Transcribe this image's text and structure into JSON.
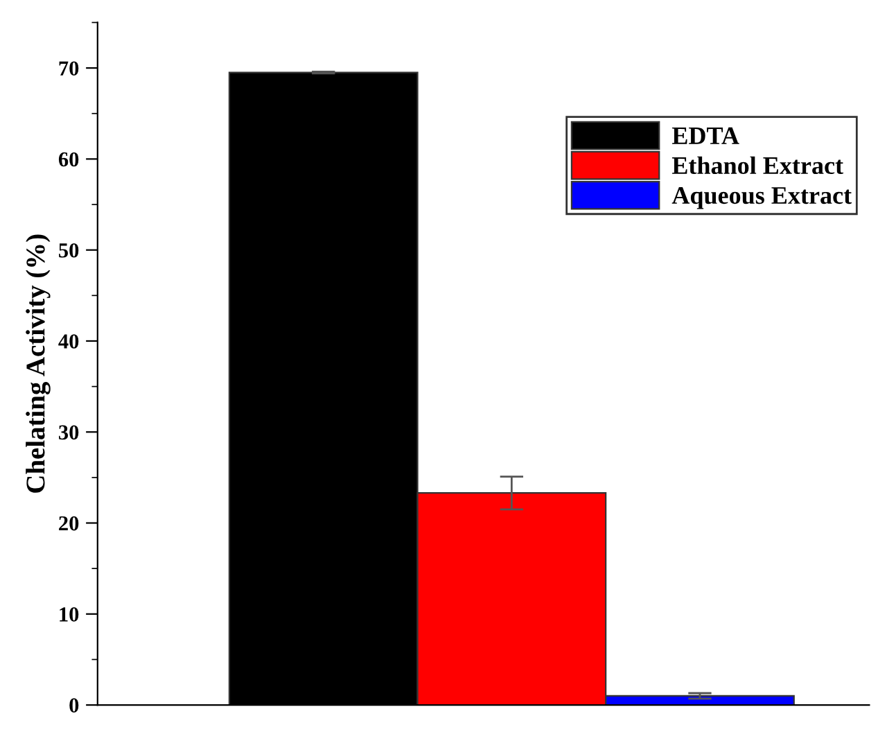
{
  "chart_data": {
    "type": "bar",
    "ylabel": "Chelating Activity (%)",
    "categories": [
      null
    ],
    "series": [
      {
        "name": "EDTA",
        "color": "#000000",
        "values": [
          69.5
        ],
        "errors": [
          0.1
        ]
      },
      {
        "name": "Ethanol Extract",
        "color": "#ff0000",
        "values": [
          23.3
        ],
        "errors": [
          1.8
        ]
      },
      {
        "name": "Aqueous Extract",
        "color": "#0000ff",
        "values": [
          1.0
        ],
        "errors": [
          0.3
        ]
      }
    ],
    "ylim": [
      0,
      75
    ],
    "yticks": [
      0,
      10,
      20,
      30,
      40,
      50,
      60,
      70
    ],
    "grid": false,
    "legend": "top right"
  }
}
